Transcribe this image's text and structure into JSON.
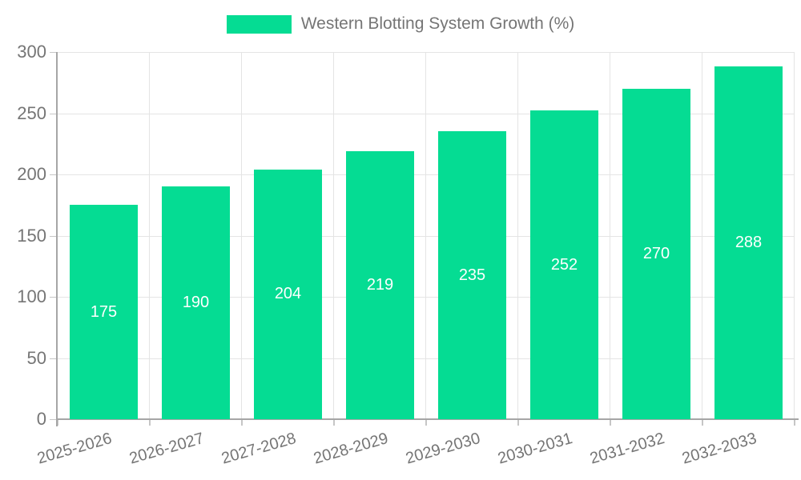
{
  "chart_data": {
    "type": "bar",
    "title": "Western Blotting System Growth (%)",
    "categories": [
      "2025-2026",
      "2026-2027",
      "2027-2028",
      "2028-2029",
      "2029-2030",
      "2030-2031",
      "2031-2032",
      "2032-2033"
    ],
    "values": [
      175,
      190,
      204,
      219,
      235,
      252,
      270,
      288
    ],
    "xlabel": "",
    "ylabel": "",
    "ylim": [
      0,
      300
    ],
    "yticks": [
      0,
      50,
      100,
      150,
      200,
      250,
      300
    ],
    "grid": true,
    "legend_position": "top-center",
    "bar_color": "#05DC93",
    "value_labels_inside_bars": true
  },
  "legend": {
    "label": "Western Blotting System Growth (%)",
    "swatch_color": "#05DC93"
  },
  "colors": {
    "background": "#FFFFFF",
    "bar": "#05DC93",
    "grid_line": "#E4E4E4",
    "axis_line": "#A6A6A6",
    "tick_mark": "#C6C6C6",
    "tick_label": "#757575",
    "legend_text": "#757575",
    "value_label": "#FFFFFF"
  }
}
